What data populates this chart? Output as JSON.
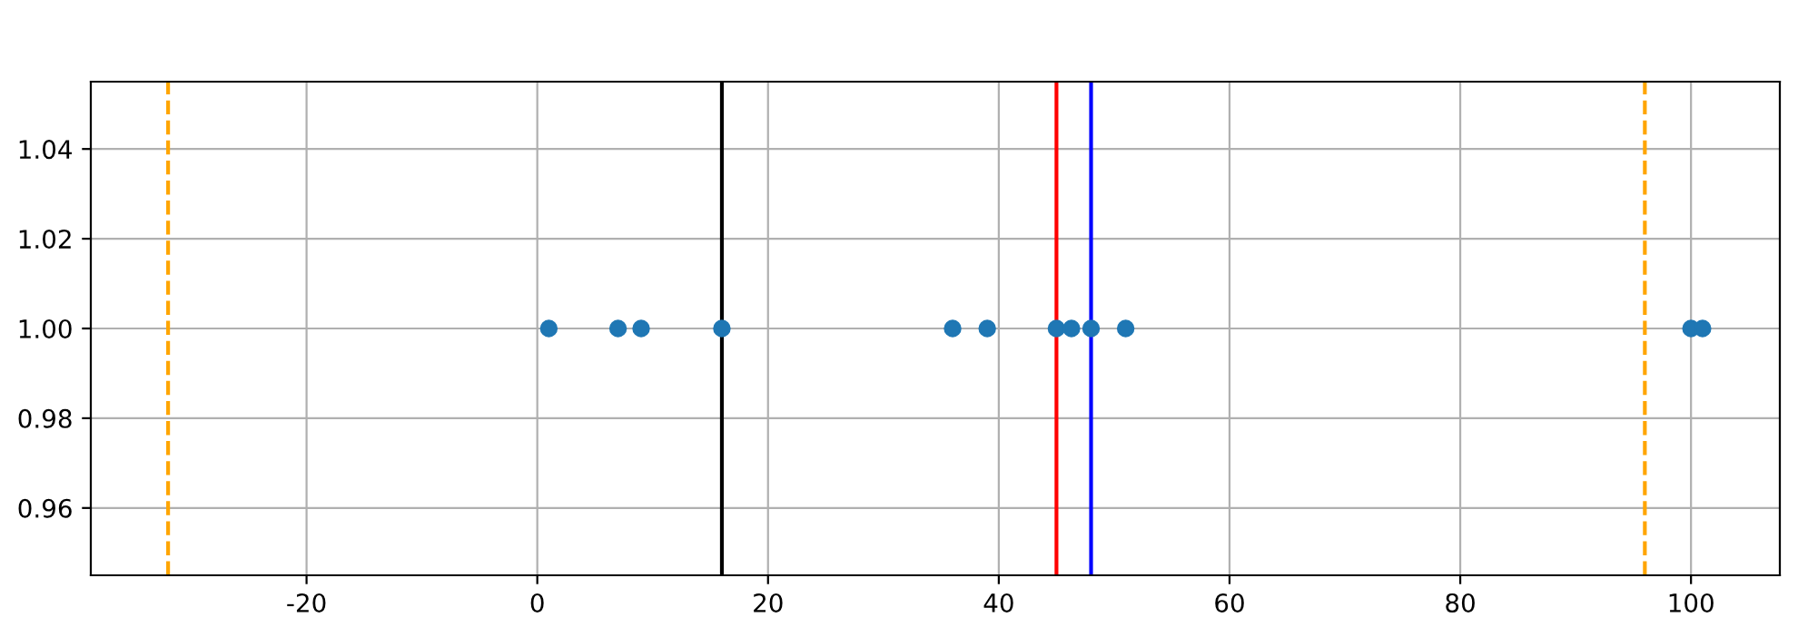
{
  "chart_data": {
    "type": "scatter",
    "x": [
      1,
      7,
      9,
      16,
      36,
      39,
      45,
      46.3,
      48,
      51,
      100,
      101
    ],
    "values": [
      1,
      1,
      1,
      1,
      1,
      1,
      1,
      1,
      1,
      1,
      1,
      1
    ],
    "color": "#1f77b4",
    "marker": "circle",
    "xlim": [
      -38.7,
      107.7
    ],
    "xticks": [
      -20,
      0,
      20,
      40,
      60,
      80,
      100
    ],
    "ylim": [
      0.945,
      1.055
    ],
    "yticks": [
      {
        "value": 0.96,
        "label": "0.96"
      },
      {
        "value": 0.98,
        "label": "0.98"
      },
      {
        "value": 1.0,
        "label": "1.00"
      },
      {
        "value": 1.02,
        "label": "1.02"
      },
      {
        "value": 1.04,
        "label": "1.04"
      }
    ],
    "grid": true,
    "ref_lines": [
      {
        "axis": "x",
        "value": 16,
        "color": "#000000",
        "line_style": "solid"
      },
      {
        "axis": "x",
        "value": 45,
        "color": "#ff0000",
        "line_style": "solid"
      },
      {
        "axis": "x",
        "value": 48,
        "color": "#0000ff",
        "line_style": "solid"
      },
      {
        "axis": "x",
        "value": -32,
        "color": "#ffa500",
        "line_style": "dashed"
      },
      {
        "axis": "x",
        "value": 96,
        "color": "#ffa500",
        "line_style": "dashed"
      }
    ]
  }
}
